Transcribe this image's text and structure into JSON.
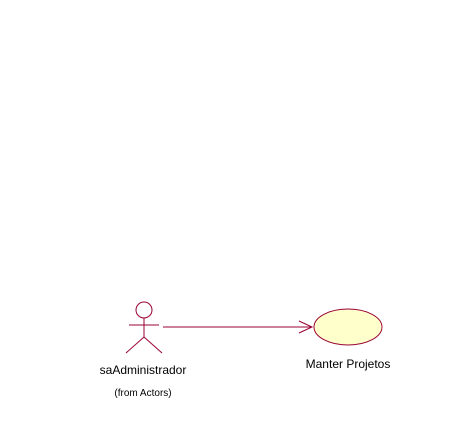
{
  "diagram": {
    "actor": {
      "name": "saAdministrador",
      "origin": "(from Actors)"
    },
    "use_case": {
      "name": "Manter Projetos"
    }
  },
  "colors": {
    "background": "#ffffff",
    "line": "#990033",
    "usecase_fill": "#ffffcc",
    "text": "#000000"
  }
}
